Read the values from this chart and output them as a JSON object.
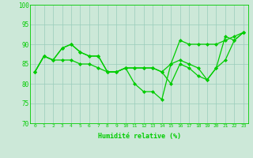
{
  "x": [
    0,
    1,
    2,
    3,
    4,
    5,
    6,
    7,
    8,
    9,
    10,
    11,
    12,
    13,
    14,
    15,
    16,
    17,
    18,
    19,
    20,
    21,
    22,
    23
  ],
  "line1": [
    83,
    87,
    86,
    89,
    90,
    88,
    87,
    87,
    83,
    83,
    84,
    80,
    78,
    78,
    76,
    85,
    86,
    85,
    84,
    81,
    84,
    92,
    91,
    93
  ],
  "line2": [
    83,
    87,
    86,
    86,
    86,
    85,
    85,
    84,
    83,
    83,
    84,
    84,
    84,
    84,
    83,
    85,
    91,
    90,
    90,
    90,
    90,
    91,
    92,
    93
  ],
  "line3": [
    83,
    87,
    86,
    89,
    90,
    88,
    87,
    87,
    83,
    83,
    84,
    84,
    84,
    84,
    83,
    80,
    85,
    84,
    82,
    81,
    84,
    86,
    91,
    93
  ],
  "line_color": "#00cc00",
  "bg_color": "#cce8d8",
  "grid_color": "#99ccbb",
  "xlabel_text": "Humidité relative (%)",
  "ylim": [
    70,
    100
  ],
  "yticks": [
    70,
    75,
    80,
    85,
    90,
    95,
    100
  ],
  "marker": "D",
  "markersize": 2,
  "linewidth": 0.9
}
